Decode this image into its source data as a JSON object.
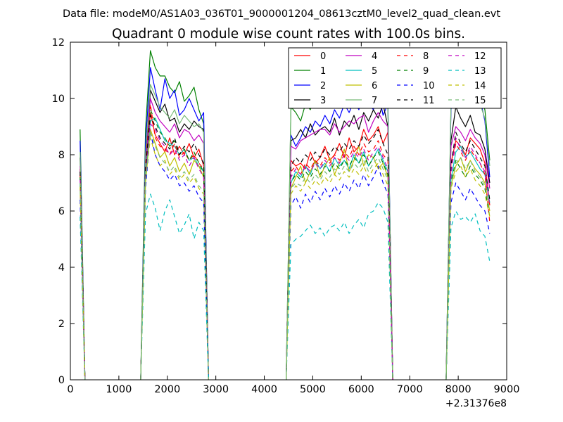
{
  "chart_data": {
    "type": "line",
    "suptitle": "Data file: modeM0/AS1A03_036T01_9000001204_08613cztM0_level2_quad_clean.evt",
    "title": "Quadrant 0 module wise count rates with 100.0s bins.",
    "xlabel": "",
    "ylabel": "",
    "offset_label": "+2.31376e8",
    "xlim": [
      0,
      9000
    ],
    "ylim": [
      0,
      12
    ],
    "xticks": [
      0,
      1000,
      2000,
      3000,
      4000,
      5000,
      6000,
      7000,
      8000,
      9000
    ],
    "yticks": [
      0,
      2,
      4,
      6,
      8,
      10,
      12
    ],
    "grid": false,
    "legend_position": "top-right",
    "legend_columns": 4,
    "x": [
      200,
      300,
      1450,
      1550,
      1650,
      1750,
      1850,
      1950,
      2050,
      2150,
      2250,
      2350,
      2450,
      2550,
      2650,
      2750,
      2850,
      4450,
      4550,
      4650,
      4750,
      4850,
      4950,
      5050,
      5150,
      5250,
      5350,
      5450,
      5550,
      5650,
      5750,
      5850,
      5950,
      6050,
      6150,
      6250,
      6350,
      6450,
      6550,
      6650,
      7750,
      7850,
      7950,
      8050,
      8150,
      8250,
      8350,
      8450,
      8550,
      8650
    ],
    "series": [
      {
        "name": "0",
        "color": "#ff0000",
        "dash": "solid",
        "values": [
          7.5,
          0,
          0,
          7.3,
          9.5,
          8.7,
          8.4,
          8.1,
          8.6,
          8.0,
          8.3,
          8.0,
          8.4,
          7.9,
          8.2,
          7.6,
          0,
          0,
          7.8,
          7.6,
          7.7,
          7.5,
          8.1,
          7.7,
          7.9,
          8.3,
          7.8,
          8.0,
          8.4,
          7.9,
          8.6,
          8.1,
          8.3,
          8.9,
          8.5,
          8.7,
          9.0,
          8.4,
          8.8,
          0,
          0,
          7.7,
          8.5,
          8.3,
          8.0,
          8.6,
          8.4,
          8.2,
          7.7,
          6.2
        ]
      },
      {
        "name": "1",
        "color": "#008000",
        "dash": "solid",
        "values": [
          8.9,
          0,
          0,
          8.9,
          11.7,
          11.1,
          10.8,
          10.8,
          10.4,
          10.2,
          10.6,
          9.9,
          10.1,
          10.4,
          9.6,
          9.1,
          0,
          0,
          9.7,
          9.5,
          9.2,
          9.8,
          9.6,
          10.1,
          9.9,
          10.5,
          9.8,
          10.2,
          10.0,
          10.3,
          9.8,
          10.4,
          10.1,
          10.7,
          9.9,
          10.5,
          10.3,
          10.0,
          9.7,
          0,
          0,
          9.7,
          11.0,
          10.5,
          10.2,
          10.6,
          10.3,
          10.0,
          9.6,
          7.8
        ]
      },
      {
        "name": "2",
        "color": "#0000ff",
        "dash": "solid",
        "values": [
          8.5,
          0,
          0,
          8.4,
          11.1,
          10.3,
          9.6,
          10.7,
          10.0,
          10.3,
          9.4,
          9.6,
          10.0,
          9.6,
          9.2,
          9.5,
          0,
          0,
          8.7,
          8.3,
          8.6,
          9.0,
          8.8,
          9.2,
          9.0,
          9.4,
          9.1,
          9.6,
          9.3,
          9.8,
          9.5,
          9.9,
          9.6,
          10.1,
          9.8,
          9.6,
          10.3,
          9.4,
          9.8,
          0,
          0,
          9.6,
          10.4,
          9.9,
          10.2,
          9.7,
          9.9,
          10.0,
          9.2,
          7.2
        ]
      },
      {
        "name": "3",
        "color": "#000000",
        "dash": "solid",
        "values": [
          7.9,
          0,
          0,
          7.8,
          10.3,
          9.9,
          9.5,
          9.8,
          9.2,
          9.3,
          8.8,
          9.1,
          8.9,
          9.2,
          9.0,
          8.9,
          0,
          0,
          8.5,
          8.6,
          8.9,
          8.6,
          9.1,
          8.7,
          8.9,
          9.0,
          8.8,
          9.3,
          8.7,
          9.2,
          9.0,
          9.4,
          8.9,
          9.5,
          9.2,
          9.6,
          9.3,
          9.8,
          9.0,
          0,
          0,
          8.5,
          9.7,
          9.3,
          9.0,
          9.4,
          8.8,
          8.7,
          8.2,
          7.0
        ]
      },
      {
        "name": "4",
        "color": "#c000c0",
        "dash": "solid",
        "values": [
          7.6,
          0,
          0,
          7.5,
          10.0,
          9.5,
          9.2,
          9.0,
          8.8,
          9.1,
          8.6,
          8.9,
          8.8,
          8.5,
          8.7,
          8.4,
          0,
          0,
          8.3,
          8.2,
          8.5,
          8.6,
          8.7,
          8.8,
          8.9,
          8.9,
          8.7,
          9.1,
          8.8,
          9.0,
          9.2,
          9.1,
          9.3,
          9.4,
          8.8,
          9.2,
          9.5,
          9.2,
          9.0,
          0,
          0,
          8.3,
          9.0,
          8.8,
          8.5,
          8.9,
          8.6,
          8.4,
          8.0,
          6.8
        ]
      },
      {
        "name": "5",
        "color": "#00bfbf",
        "dash": "solid",
        "values": [
          7.0,
          0,
          0,
          7.2,
          9.2,
          9.3,
          8.9,
          8.5,
          8.4,
          8.3,
          8.0,
          8.2,
          7.8,
          7.9,
          7.6,
          7.4,
          0,
          0,
          7.0,
          7.4,
          7.2,
          7.6,
          7.3,
          7.8,
          7.5,
          7.7,
          7.4,
          7.9,
          7.6,
          7.8,
          7.5,
          8.0,
          7.7,
          8.1,
          7.6,
          7.9,
          8.2,
          7.8,
          7.4,
          0,
          0,
          7.1,
          8.1,
          8.3,
          7.9,
          8.1,
          7.8,
          7.5,
          7.3,
          6.3
        ]
      },
      {
        "name": "6",
        "color": "#bfbf00",
        "dash": "solid",
        "values": [
          6.8,
          0,
          0,
          7.0,
          8.9,
          8.4,
          7.9,
          8.1,
          7.6,
          7.9,
          7.4,
          7.7,
          7.3,
          7.8,
          7.6,
          7.2,
          0,
          0,
          6.8,
          7.2,
          7.6,
          7.0,
          7.4,
          7.8,
          7.2,
          7.6,
          7.9,
          7.3,
          7.7,
          8.2,
          7.4,
          7.8,
          8.3,
          7.6,
          8.0,
          7.9,
          7.5,
          7.7,
          7.2,
          0,
          0,
          6.9,
          7.6,
          7.9,
          7.4,
          7.8,
          7.5,
          7.3,
          7.0,
          6.0
        ]
      },
      {
        "name": "7",
        "color": "#77bb77",
        "dash": "solid",
        "values": [
          8.1,
          0,
          0,
          8.0,
          10.5,
          10.1,
          9.7,
          9.5,
          9.3,
          9.6,
          9.1,
          9.4,
          9.2,
          9.0,
          9.1,
          8.8,
          0,
          0,
          9.6,
          9.8,
          10.0,
          9.7,
          10.1,
          9.9,
          10.3,
          10.2,
          10.5,
          10.4,
          10.9,
          10.2,
          10.6,
          10.3,
          10.7,
          10.5,
          10.2,
          10.6,
          10.9,
          10.4,
          9.6,
          0,
          0,
          9.8,
          10.2,
          10.6,
          10.1,
          10.4,
          10.0,
          9.8,
          9.3,
          7.6
        ]
      },
      {
        "name": "8",
        "color": "#ff0000",
        "dash": "dashed",
        "values": [
          7.3,
          0,
          0,
          7.6,
          9.8,
          8.6,
          8.3,
          8.2,
          8.0,
          8.4,
          7.9,
          8.1,
          7.8,
          8.0,
          7.7,
          7.5,
          0,
          0,
          7.4,
          7.6,
          7.3,
          7.7,
          7.5,
          7.8,
          7.6,
          7.9,
          7.7,
          8.0,
          7.8,
          8.1,
          7.9,
          8.3,
          8.0,
          8.4,
          8.1,
          8.2,
          8.5,
          8.0,
          7.8,
          0,
          0,
          7.4,
          8.4,
          8.1,
          7.8,
          8.2,
          7.9,
          7.7,
          7.3,
          5.6
        ]
      },
      {
        "name": "9",
        "color": "#008000",
        "dash": "dashed",
        "values": [
          7.2,
          0,
          0,
          7.4,
          9.6,
          9.2,
          8.8,
          8.6,
          8.3,
          8.5,
          8.0,
          8.2,
          7.8,
          8.1,
          7.7,
          7.4,
          0,
          0,
          7.0,
          7.3,
          7.1,
          7.4,
          7.2,
          7.5,
          7.3,
          7.6,
          7.4,
          7.7,
          7.5,
          7.8,
          7.6,
          7.9,
          7.7,
          8.0,
          7.6,
          7.9,
          8.1,
          7.7,
          7.3,
          0,
          0,
          7.0,
          7.8,
          7.5,
          7.2,
          7.6,
          7.3,
          7.1,
          6.8,
          5.8
        ]
      },
      {
        "name": "10",
        "color": "#0000ff",
        "dash": "dashed",
        "values": [
          6.4,
          0,
          0,
          6.8,
          8.8,
          8.0,
          7.6,
          7.4,
          7.1,
          7.3,
          6.9,
          7.0,
          6.7,
          6.9,
          6.5,
          6.3,
          0,
          0,
          6.2,
          6.5,
          6.1,
          6.6,
          6.3,
          6.7,
          6.4,
          6.8,
          6.5,
          6.9,
          6.6,
          7.0,
          6.7,
          7.1,
          6.8,
          7.3,
          6.9,
          7.2,
          7.6,
          7.0,
          6.6,
          0,
          0,
          6.3,
          7.0,
          6.7,
          6.4,
          6.8,
          6.5,
          6.2,
          6.0,
          5.2
        ]
      },
      {
        "name": "11",
        "color": "#000000",
        "dash": "dashed",
        "values": [
          7.4,
          0,
          0,
          7.5,
          9.4,
          9.0,
          8.6,
          8.4,
          8.2,
          8.6,
          8.0,
          8.3,
          8.1,
          8.4,
          8.0,
          7.7,
          0,
          0,
          7.6,
          7.9,
          7.7,
          8.0,
          7.8,
          8.1,
          7.9,
          8.2,
          8.0,
          8.3,
          8.1,
          8.4,
          8.2,
          8.5,
          8.3,
          8.7,
          8.4,
          8.6,
          8.9,
          8.4,
          8.0,
          0,
          0,
          7.6,
          8.8,
          8.4,
          8.1,
          8.5,
          8.2,
          7.9,
          7.6,
          6.4
        ]
      },
      {
        "name": "12",
        "color": "#c000c0",
        "dash": "dashed",
        "values": [
          7.1,
          0,
          0,
          7.2,
          9.1,
          8.9,
          8.5,
          8.3,
          8.0,
          8.2,
          7.8,
          8.0,
          7.6,
          7.9,
          7.5,
          7.2,
          0,
          0,
          7.2,
          7.5,
          7.3,
          7.6,
          7.4,
          7.7,
          7.5,
          7.8,
          7.6,
          7.9,
          7.7,
          8.0,
          7.8,
          8.1,
          7.9,
          8.2,
          7.8,
          8.1,
          8.3,
          7.9,
          7.5,
          0,
          0,
          7.3,
          8.6,
          8.2,
          7.9,
          8.3,
          8.0,
          7.7,
          7.4,
          6.2
        ]
      },
      {
        "name": "13",
        "color": "#00bfbf",
        "dash": "dashed",
        "values": [
          5.8,
          0,
          0,
          5.9,
          6.6,
          6.1,
          5.3,
          6.0,
          6.4,
          5.8,
          5.2,
          5.5,
          5.9,
          5.0,
          5.6,
          5.3,
          0,
          0,
          4.8,
          5.0,
          5.1,
          5.3,
          5.5,
          5.2,
          5.4,
          5.1,
          5.4,
          5.5,
          5.3,
          5.6,
          5.2,
          5.5,
          5.7,
          5.4,
          5.9,
          6.0,
          6.3,
          6.1,
          5.6,
          0,
          0,
          5.4,
          6.0,
          5.7,
          5.8,
          5.6,
          5.9,
          5.3,
          5.1,
          4.2
        ]
      },
      {
        "name": "14",
        "color": "#bfbf00",
        "dash": "dashed",
        "values": [
          6.9,
          0,
          0,
          7.1,
          8.6,
          8.0,
          7.6,
          7.8,
          7.3,
          7.5,
          7.1,
          7.3,
          7.0,
          7.2,
          6.8,
          6.6,
          0,
          0,
          6.6,
          6.9,
          6.7,
          7.0,
          6.8,
          7.1,
          6.9,
          7.2,
          7.0,
          7.3,
          7.1,
          7.4,
          7.2,
          7.5,
          7.3,
          7.6,
          7.2,
          7.5,
          7.7,
          7.3,
          6.9,
          0,
          0,
          6.8,
          7.4,
          7.6,
          7.2,
          7.5,
          7.1,
          6.9,
          6.6,
          5.8
        ]
      },
      {
        "name": "15",
        "color": "#77bb77",
        "dash": "dashed",
        "values": [
          7.0,
          0,
          0,
          7.1,
          8.8,
          8.3,
          7.9,
          7.7,
          7.4,
          7.6,
          7.2,
          7.4,
          7.1,
          7.3,
          6.9,
          6.7,
          0,
          0,
          6.8,
          7.0,
          6.9,
          7.2,
          7.0,
          7.3,
          7.1,
          7.4,
          7.2,
          7.5,
          7.3,
          7.6,
          7.4,
          7.7,
          7.5,
          7.8,
          7.4,
          7.7,
          7.9,
          7.5,
          7.1,
          0,
          0,
          6.9,
          7.7,
          7.9,
          7.5,
          7.8,
          7.4,
          7.2,
          6.9,
          6.0
        ]
      }
    ]
  }
}
